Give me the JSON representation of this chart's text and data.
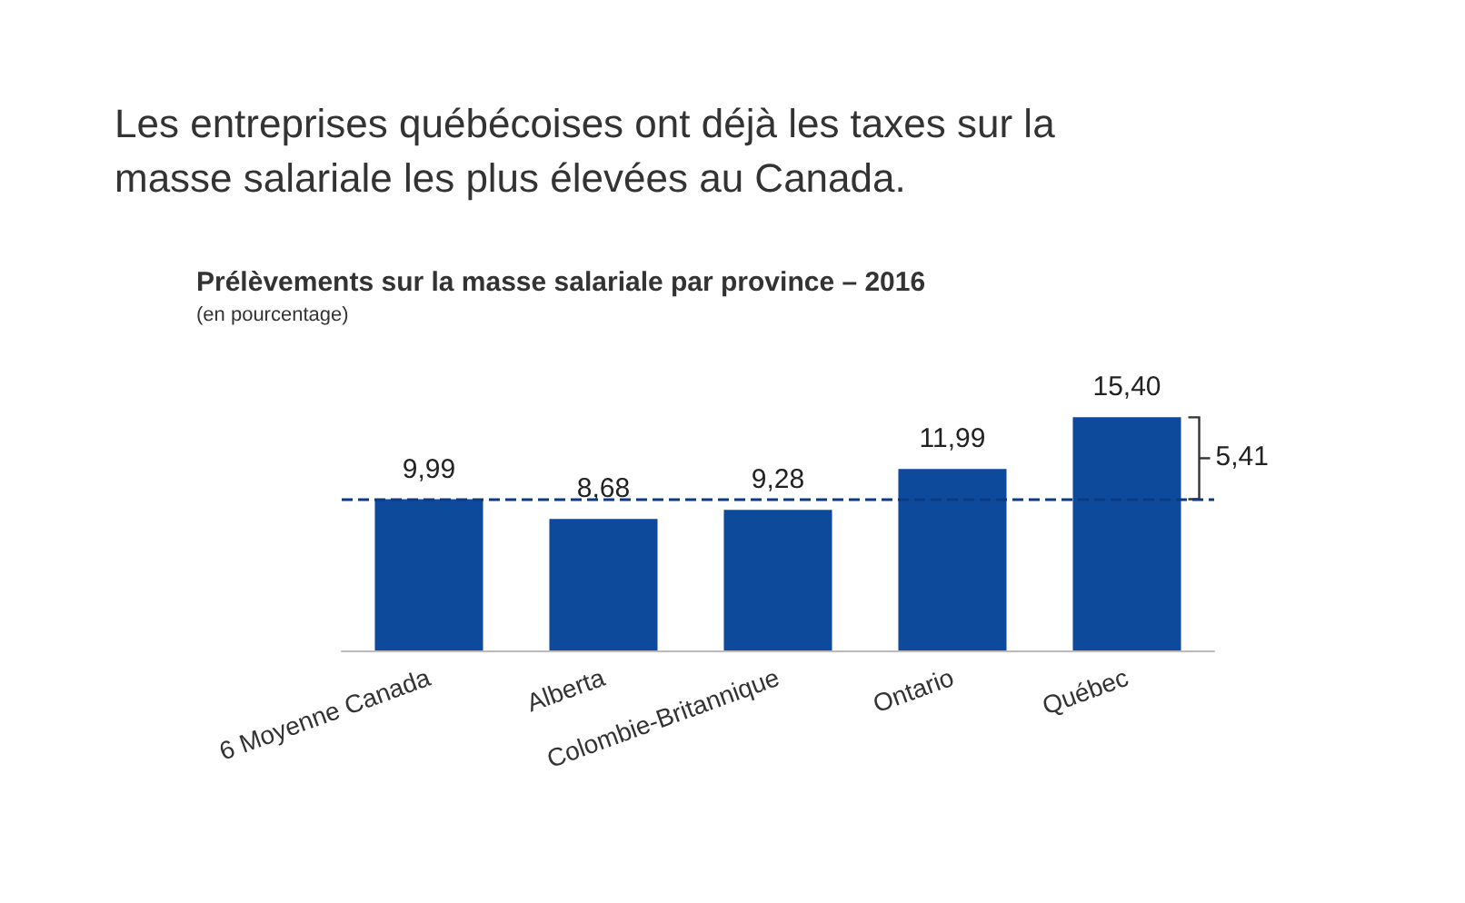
{
  "chart_data": {
    "type": "bar",
    "title": "Les entreprises québécoises ont déjà les taxes sur la masse salariale les plus élevées au Canada.",
    "subtitle": "Prélèvements sur la masse salariale par province – 2016",
    "ylabel": "(en pourcentage)",
    "categories": [
      "6 Moyenne Canada",
      "Alberta",
      "Colombie-Britannique",
      "Ontario",
      "Québec"
    ],
    "values": [
      9.99,
      8.68,
      9.28,
      11.99,
      15.4
    ],
    "value_labels": [
      "9,99",
      "8,68",
      "9,28",
      "11,99",
      "15,40"
    ],
    "color": "#0d4a9c",
    "ref_lines": [
      {
        "axis": "y",
        "value": 9.99,
        "color": "#0d3a80",
        "line_style": "dashed"
      }
    ],
    "annotations": [
      "5,41"
    ]
  }
}
